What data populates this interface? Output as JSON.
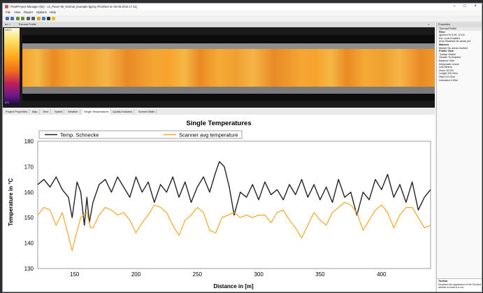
{
  "window": {
    "title": "FleetProject Manager (64) - 12_Paver 96_Normal_Example.fpproj (Finished on 03.06.2015 17:11)"
  },
  "menu": [
    "File",
    "View",
    "Report",
    "Options",
    "Help"
  ],
  "thermal": {
    "header": "Thermal Profile",
    "scale_top": "180°C",
    "scale_bottom": "0°C",
    "marker_left": "TP0.00m",
    "marker_right": "440.00m"
  },
  "tabs": [
    "Project Properties",
    "Map",
    "Time",
    "Speed",
    "Weather",
    "Single Temperatures",
    "Quality Indicator",
    "Screed Width"
  ],
  "active_tab": 5,
  "properties": {
    "title": "Properties",
    "subtitle": "Thermal Profile",
    "filter": "Filter",
    "filter_rows": [
      "Ignored Ts   0.00, 10.00",
      "Ext. Lock   Enabled",
      "Area Disabled   No areas yet"
    ],
    "markers": "Markers",
    "marker_rows": [
      "Marker   No areas marked"
    ],
    "profile": "Profile View",
    "profile_rows": [
      "Toolbar   Visible",
      "Header Ts   Enabled",
      "Balance   Hide",
      "Interpolate   Linear",
      "Unit   Meters",
      "Zoom   20.0%",
      "Length   320.00m",
      "Start   110.00m",
      "Indication   0.00m"
    ],
    "tip_title": "Toolbar",
    "tip_text": "Describes the appearance of the Tool and whether to show it or not."
  },
  "chart_data": {
    "type": "line",
    "title": "Single Temperatures",
    "xlabel": "Distance in [m]",
    "ylabel": "Temperature in °C",
    "xlim": [
      120,
      440
    ],
    "ylim": [
      130,
      180
    ],
    "xticks": [
      150,
      200,
      250,
      300,
      350,
      400
    ],
    "yticks": [
      130,
      140,
      150,
      160,
      170,
      180
    ],
    "grid": true,
    "legend_position": "top-left",
    "series": [
      {
        "name": "Temp. Schnecke",
        "color": "#222222",
        "x": [
          120,
          125,
          130,
          135,
          140,
          145,
          148,
          152,
          155,
          158,
          160,
          162,
          165,
          170,
          175,
          180,
          185,
          190,
          195,
          200,
          205,
          210,
          215,
          220,
          225,
          230,
          235,
          240,
          245,
          250,
          255,
          260,
          265,
          268,
          272,
          276,
          280,
          285,
          290,
          295,
          300,
          305,
          310,
          315,
          320,
          325,
          330,
          335,
          340,
          345,
          350,
          355,
          360,
          365,
          370,
          375,
          380,
          385,
          390,
          395,
          400,
          405,
          410,
          415,
          420,
          425,
          430,
          435,
          440
        ],
        "y": [
          163,
          165,
          162,
          166,
          161,
          158,
          150,
          164,
          160,
          147,
          158,
          148,
          156,
          163,
          165,
          160,
          166,
          162,
          158,
          166,
          160,
          164,
          156,
          163,
          160,
          166,
          158,
          164,
          156,
          162,
          166,
          160,
          168,
          172,
          170,
          162,
          151,
          160,
          158,
          163,
          157,
          164,
          159,
          161,
          157,
          163,
          159,
          165,
          158,
          163,
          157,
          162,
          156,
          165,
          158,
          160,
          151,
          160,
          157,
          165,
          161,
          167,
          158,
          163,
          156,
          164,
          153,
          158,
          161
        ]
      },
      {
        "name": "Scanner avg temperature",
        "color": "#f5a623",
        "x": [
          120,
          125,
          130,
          135,
          140,
          145,
          148,
          150,
          155,
          160,
          163,
          165,
          170,
          175,
          180,
          185,
          190,
          195,
          200,
          205,
          210,
          215,
          220,
          225,
          230,
          235,
          240,
          245,
          250,
          255,
          260,
          265,
          270,
          275,
          280,
          285,
          290,
          295,
          300,
          305,
          310,
          315,
          320,
          325,
          330,
          335,
          340,
          345,
          350,
          355,
          360,
          365,
          370,
          375,
          380,
          385,
          390,
          395,
          400,
          405,
          410,
          415,
          420,
          425,
          430,
          435,
          440
        ],
        "y": [
          151,
          154,
          153,
          147,
          152,
          143,
          137,
          141,
          150,
          152,
          146,
          146,
          151,
          154,
          153,
          151,
          152,
          149,
          144,
          148,
          151,
          155,
          154,
          152,
          147,
          143,
          149,
          151,
          154,
          152,
          145,
          144,
          150,
          151,
          152,
          150,
          151,
          150,
          151,
          151,
          148,
          152,
          153,
          149,
          146,
          142,
          147,
          152,
          149,
          147,
          152,
          154,
          156,
          155,
          152,
          145,
          149,
          153,
          155,
          152,
          146,
          151,
          154,
          154,
          150,
          146,
          147
        ]
      }
    ]
  }
}
